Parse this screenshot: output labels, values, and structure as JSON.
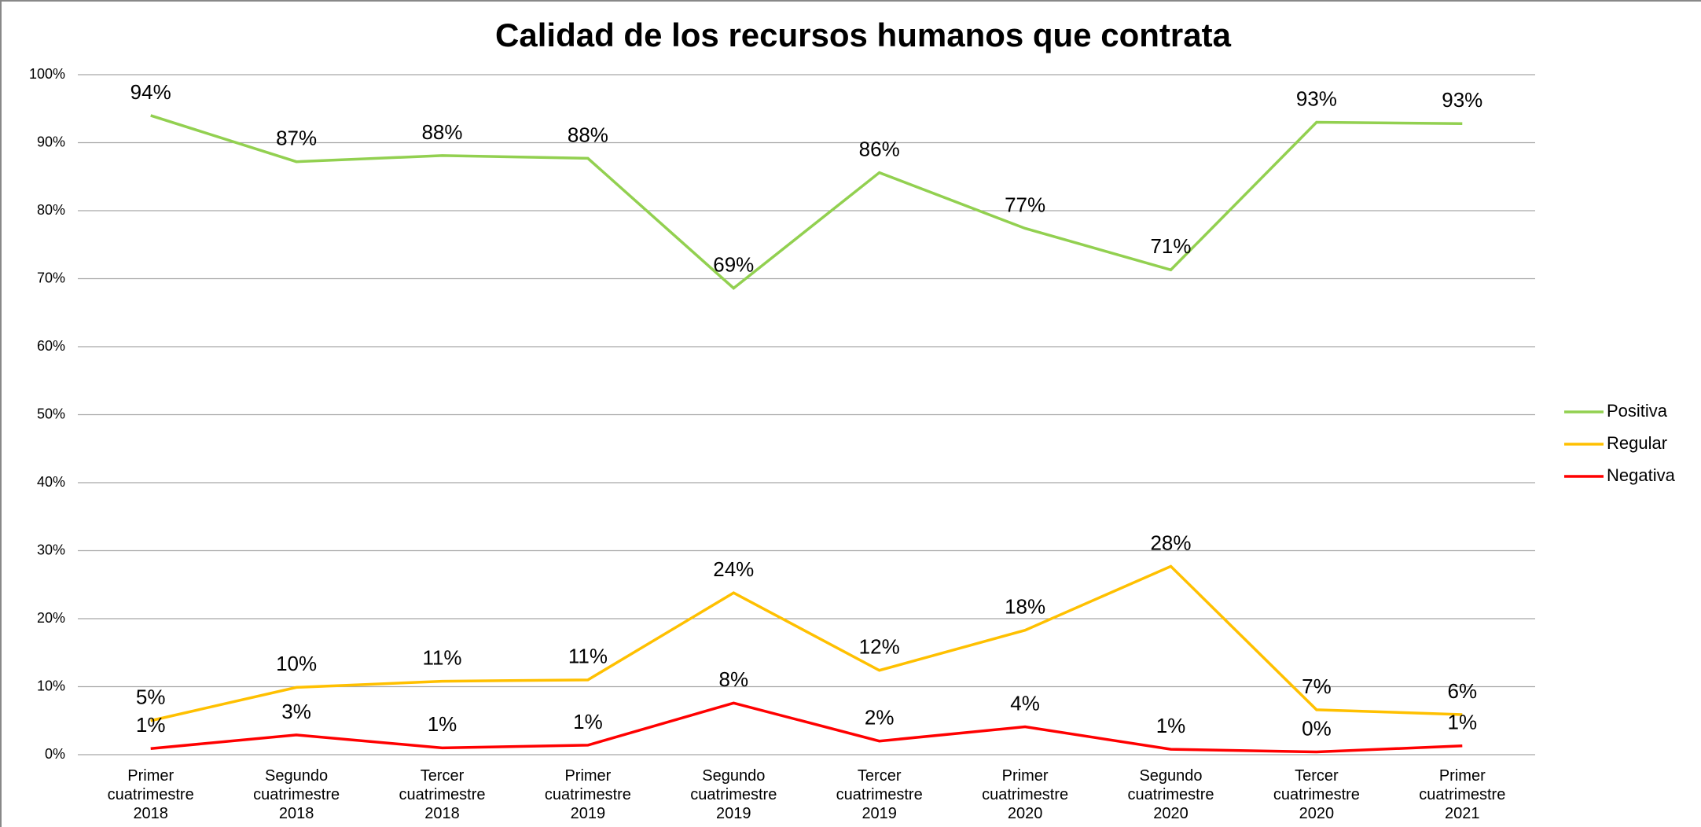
{
  "chart_data": {
    "type": "line",
    "title": "Calidad de los recursos humanos que contrata",
    "categories": [
      "Primer cuatrimestre 2018",
      "Segundo cuatrimestre 2018",
      "Tercer cuatrimestre 2018",
      "Primer cuatrimestre 2019",
      "Segundo cuatrimestre 2019",
      "Tercer cuatrimestre 2019",
      "Primer cuatrimestre 2020",
      "Segundo cuatrimestre 2020",
      "Tercer cuatrimestre 2020",
      "Primer cuatrimestre 2021"
    ],
    "series": [
      {
        "name": "Positiva",
        "color": "#92d050",
        "values": [
          94,
          87.2,
          88.1,
          87.7,
          68.6,
          85.6,
          77.4,
          71.3,
          93,
          92.8
        ],
        "value_labels": [
          "94%",
          "87%",
          "88%",
          "88%",
          "69%",
          "86%",
          "77%",
          "71%",
          "93%",
          "93%"
        ]
      },
      {
        "name": "Regular",
        "color": "#ffc000",
        "values": [
          5,
          9.9,
          10.8,
          11,
          23.8,
          12.4,
          18.3,
          27.7,
          6.6,
          5.9
        ],
        "value_labels": [
          "5%",
          "10%",
          "11%",
          "11%",
          "24%",
          "12%",
          "18%",
          "28%",
          "7%",
          "6%"
        ]
      },
      {
        "name": "Negativa",
        "color": "#ff0000",
        "values": [
          0.9,
          2.9,
          1,
          1.4,
          7.6,
          2,
          4.1,
          0.8,
          0.4,
          1.3
        ],
        "value_labels": [
          "1%",
          "3%",
          "1%",
          "1%",
          "8%",
          "2%",
          "4%",
          "1%",
          "0%",
          "1%"
        ]
      }
    ],
    "ylim": [
      0,
      100
    ],
    "yticks": [
      {
        "value": 0,
        "label": "0%"
      },
      {
        "value": 10,
        "label": "10%"
      },
      {
        "value": 20,
        "label": "20%"
      },
      {
        "value": 30,
        "label": "30%"
      },
      {
        "value": 40,
        "label": "40%"
      },
      {
        "value": 50,
        "label": "50%"
      },
      {
        "value": 60,
        "label": "60%"
      },
      {
        "value": 70,
        "label": "70%"
      },
      {
        "value": 80,
        "label": "80%"
      },
      {
        "value": 90,
        "label": "90%"
      },
      {
        "value": 100,
        "label": "100%"
      }
    ],
    "grid": true,
    "legend": "right"
  }
}
